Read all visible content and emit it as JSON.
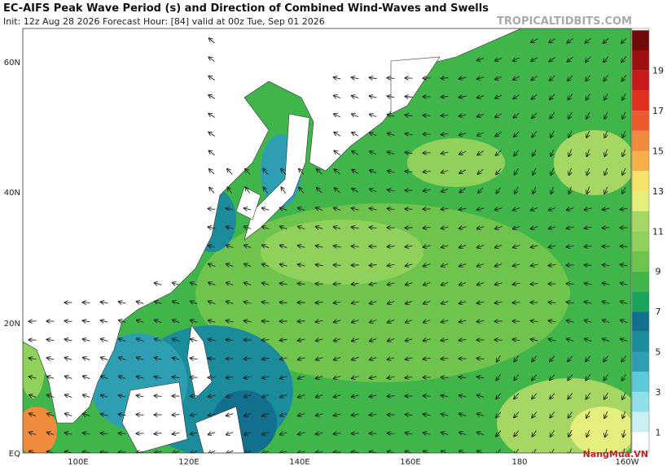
{
  "header": {
    "title": "EC-AIFS Peak Wave Period (s) and Direction of Combined Wind-Waves and Swells",
    "subtitle": "Init: 12z Aug 28 2026   Forecast Hour: [84]   valid at 00z Tue, Sep 01 2026",
    "site": "TROPICALTIDBITS.COM"
  },
  "map": {
    "lat_labels": [
      "60N",
      "40N",
      "20N",
      "EQ"
    ],
    "lon_labels": [
      "100E",
      "120E",
      "140E",
      "160E",
      "180",
      "160W"
    ]
  },
  "colorbar": {
    "labels": [
      "1",
      "3",
      "5",
      "7",
      "9",
      "11",
      "13",
      "15",
      "17",
      "19"
    ]
  },
  "watermark": "NangMua.VN"
}
